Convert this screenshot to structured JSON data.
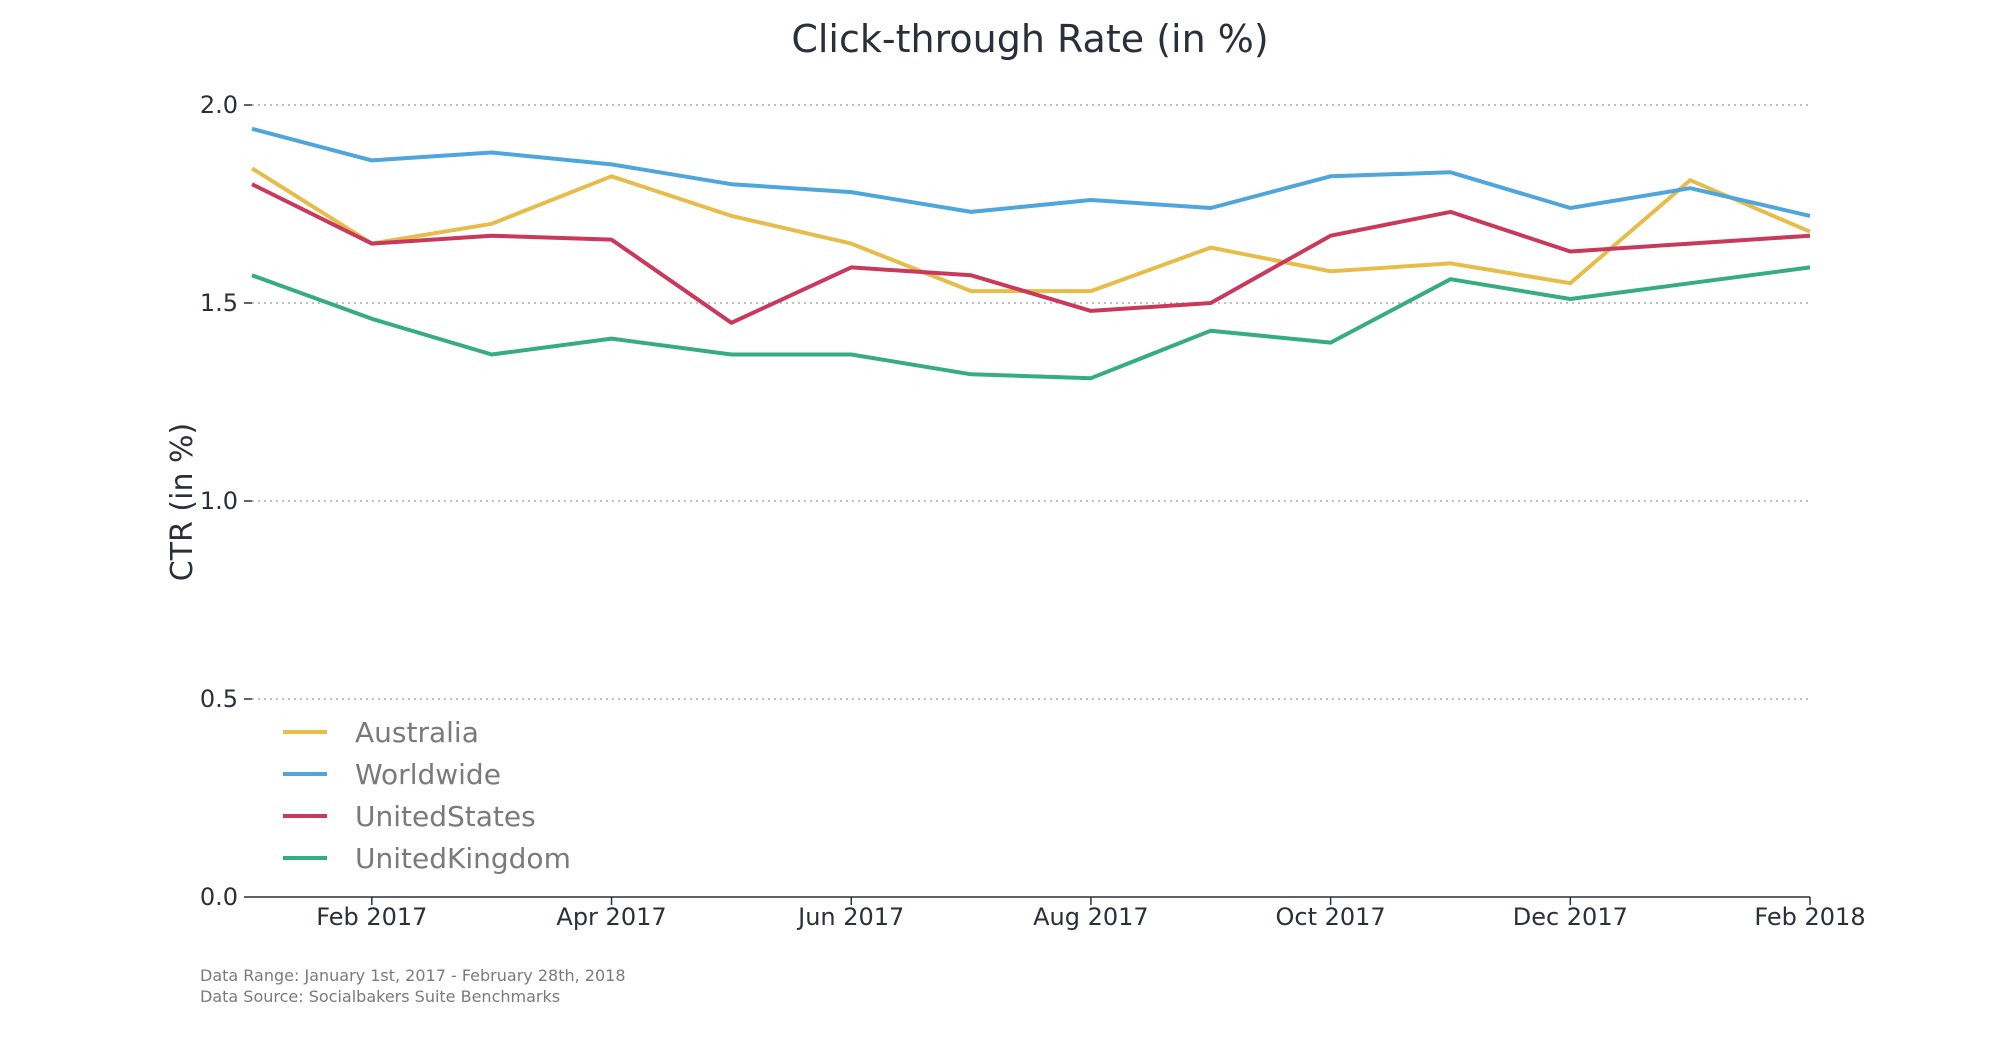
{
  "chart_data": {
    "type": "line",
    "title": "Click-through Rate (in %)",
    "xlabel": "",
    "ylabel": "CTR (in %)",
    "ylim": [
      0.0,
      2.0
    ],
    "yticks": [
      "0.0",
      "0.5",
      "1.0",
      "1.5",
      "2.0"
    ],
    "xlim": [
      "2017-01",
      "2018-02"
    ],
    "x": [
      "2017-01",
      "2017-02",
      "2017-03",
      "2017-04",
      "2017-05",
      "2017-06",
      "2017-07",
      "2017-08",
      "2017-09",
      "2017-10",
      "2017-11",
      "2017-12",
      "2018-01",
      "2018-02"
    ],
    "xticks": [
      {
        "x": "2017-02",
        "label": "Feb 2017"
      },
      {
        "x": "2017-04",
        "label": "Apr 2017"
      },
      {
        "x": "2017-06",
        "label": "Jun 2017"
      },
      {
        "x": "2017-08",
        "label": "Aug 2017"
      },
      {
        "x": "2017-10",
        "label": "Oct 2017"
      },
      {
        "x": "2017-12",
        "label": "Dec 2017"
      },
      {
        "x": "2018-02",
        "label": "Feb 2018"
      }
    ],
    "grid": "horizontal dotted",
    "legend_position": "bottom-left",
    "series": [
      {
        "name": "Australia",
        "color": "#e6bd4a",
        "values": [
          1.84,
          1.65,
          1.7,
          1.82,
          1.72,
          1.65,
          1.53,
          1.53,
          1.64,
          1.58,
          1.6,
          1.55,
          1.81,
          1.68
        ]
      },
      {
        "name": "Worldwide",
        "color": "#4ea6dc",
        "values": [
          1.94,
          1.86,
          1.88,
          1.85,
          1.8,
          1.78,
          1.73,
          1.76,
          1.74,
          1.82,
          1.83,
          1.74,
          1.79,
          1.72
        ]
      },
      {
        "name": "UnitedStates",
        "color": "#c9395b",
        "values": [
          1.8,
          1.65,
          1.67,
          1.66,
          1.45,
          1.59,
          1.57,
          1.48,
          1.5,
          1.67,
          1.73,
          1.63,
          1.65,
          1.67
        ]
      },
      {
        "name": "UnitedKingdom",
        "color": "#36ad7e",
        "values": [
          1.57,
          1.46,
          1.37,
          1.41,
          1.37,
          1.37,
          1.32,
          1.31,
          1.43,
          1.4,
          1.56,
          1.51,
          1.55,
          1.59
        ]
      }
    ]
  },
  "footnotes": {
    "range": "Data Range: January 1st, 2017 - February 28th, 2018",
    "source": "Data Source: Socialbakers Suite Benchmarks"
  }
}
